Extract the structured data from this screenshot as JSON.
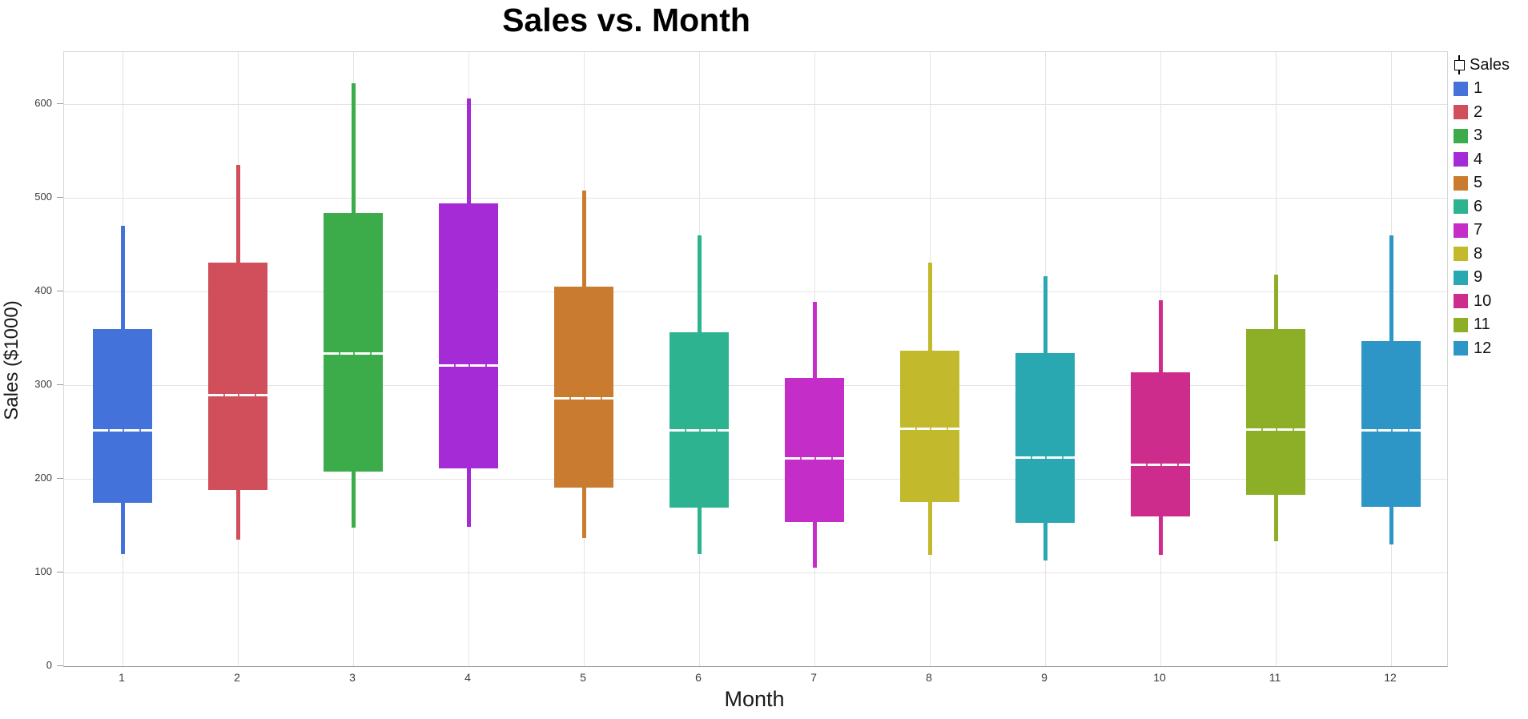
{
  "title": "Sales vs. Month",
  "legend": {
    "title": "Sales",
    "entries": [
      {
        "label": "1",
        "color": "#4472DB"
      },
      {
        "label": "2",
        "color": "#D04F5B"
      },
      {
        "label": "3",
        "color": "#3BAC49"
      },
      {
        "label": "4",
        "color": "#A42BD6"
      },
      {
        "label": "5",
        "color": "#C97B2F"
      },
      {
        "label": "6",
        "color": "#2DB390"
      },
      {
        "label": "7",
        "color": "#C52DC9"
      },
      {
        "label": "8",
        "color": "#C2BA2C"
      },
      {
        "label": "9",
        "color": "#2AA8B2"
      },
      {
        "label": "10",
        "color": "#CE2C8C"
      },
      {
        "label": "11",
        "color": "#8DAE27"
      },
      {
        "label": "12",
        "color": "#2D96C6"
      }
    ]
  },
  "chart_data": {
    "type": "box",
    "title": "Sales vs. Month",
    "xlabel": "Month",
    "ylabel": "Sales ($1000)",
    "x_categories": [
      "1",
      "2",
      "3",
      "4",
      "5",
      "6",
      "7",
      "8",
      "9",
      "10",
      "11",
      "12"
    ],
    "yticks": [
      0,
      100,
      200,
      300,
      400,
      500,
      600
    ],
    "ylim": [
      0,
      655
    ],
    "grid": true,
    "legend_position": "top-right-outside",
    "series": [
      {
        "month": "1",
        "color": "#4472DB",
        "min": 120,
        "q1": 174,
        "median": 252,
        "q3": 360,
        "max": 470
      },
      {
        "month": "2",
        "color": "#D04F5B",
        "min": 135,
        "q1": 188,
        "median": 290,
        "q3": 431,
        "max": 535
      },
      {
        "month": "3",
        "color": "#3BAC49",
        "min": 148,
        "q1": 208,
        "median": 334,
        "q3": 484,
        "max": 622
      },
      {
        "month": "4",
        "color": "#A42BD6",
        "min": 149,
        "q1": 211,
        "median": 321,
        "q3": 494,
        "max": 606
      },
      {
        "month": "5",
        "color": "#C97B2F",
        "min": 137,
        "q1": 191,
        "median": 286,
        "q3": 405,
        "max": 508
      },
      {
        "month": "6",
        "color": "#2DB390",
        "min": 120,
        "q1": 169,
        "median": 252,
        "q3": 356,
        "max": 460
      },
      {
        "month": "7",
        "color": "#C52DC9",
        "min": 105,
        "q1": 154,
        "median": 222,
        "q3": 308,
        "max": 389
      },
      {
        "month": "8",
        "color": "#C2BA2C",
        "min": 119,
        "q1": 175,
        "median": 254,
        "q3": 337,
        "max": 431
      },
      {
        "month": "9",
        "color": "#2AA8B2",
        "min": 113,
        "q1": 153,
        "median": 223,
        "q3": 334,
        "max": 416
      },
      {
        "month": "10",
        "color": "#CE2C8C",
        "min": 119,
        "q1": 160,
        "median": 215,
        "q3": 314,
        "max": 391
      },
      {
        "month": "11",
        "color": "#8DAE27",
        "min": 133,
        "q1": 183,
        "median": 253,
        "q3": 360,
        "max": 418
      },
      {
        "month": "12",
        "color": "#2D96C6",
        "min": 130,
        "q1": 170,
        "median": 252,
        "q3": 347,
        "max": 460
      }
    ]
  }
}
